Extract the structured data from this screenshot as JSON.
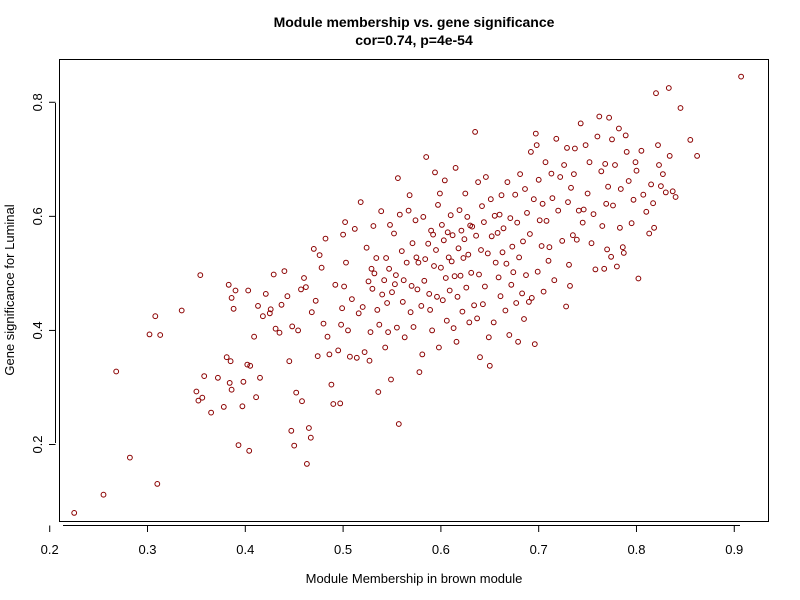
{
  "chart_data": {
    "type": "scatter",
    "title": "Module membership vs. gene significance",
    "subtitle": "cor=0.74, p=4e-54",
    "xlabel": "Module Membership in brown module",
    "ylabel": "Gene significance for Luminal",
    "xlim": [
      0.21,
      0.935
    ],
    "ylim": [
      0.065,
      0.875
    ],
    "xticks": [
      "0.2",
      "0.3",
      "0.4",
      "0.5",
      "0.6",
      "0.7",
      "0.8",
      "0.9"
    ],
    "yticks": [
      "0.2",
      "0.4",
      "0.6",
      "0.8"
    ],
    "grid": false,
    "point_color": "#8b0000",
    "points": [
      [
        0.225,
        0.08
      ],
      [
        0.255,
        0.112
      ],
      [
        0.268,
        0.328
      ],
      [
        0.282,
        0.177
      ],
      [
        0.302,
        0.393
      ],
      [
        0.308,
        0.425
      ],
      [
        0.31,
        0.131
      ],
      [
        0.313,
        0.392
      ],
      [
        0.335,
        0.435
      ],
      [
        0.35,
        0.293
      ],
      [
        0.352,
        0.277
      ],
      [
        0.354,
        0.497
      ],
      [
        0.356,
        0.282
      ],
      [
        0.358,
        0.32
      ],
      [
        0.365,
        0.256
      ],
      [
        0.372,
        0.317
      ],
      [
        0.378,
        0.266
      ],
      [
        0.381,
        0.353
      ],
      [
        0.383,
        0.48
      ],
      [
        0.384,
        0.308
      ],
      [
        0.385,
        0.346
      ],
      [
        0.386,
        0.296
      ],
      [
        0.386,
        0.457
      ],
      [
        0.388,
        0.438
      ],
      [
        0.39,
        0.47
      ],
      [
        0.393,
        0.199
      ],
      [
        0.397,
        0.267
      ],
      [
        0.398,
        0.31
      ],
      [
        0.402,
        0.34
      ],
      [
        0.403,
        0.47
      ],
      [
        0.404,
        0.189
      ],
      [
        0.405,
        0.338
      ],
      [
        0.409,
        0.389
      ],
      [
        0.411,
        0.283
      ],
      [
        0.413,
        0.443
      ],
      [
        0.415,
        0.317
      ],
      [
        0.418,
        0.425
      ],
      [
        0.421,
        0.464
      ],
      [
        0.425,
        0.43
      ],
      [
        0.426,
        0.437
      ],
      [
        0.429,
        0.498
      ],
      [
        0.431,
        0.403
      ],
      [
        0.435,
        0.396
      ],
      [
        0.437,
        0.445
      ],
      [
        0.44,
        0.504
      ],
      [
        0.443,
        0.46
      ],
      [
        0.445,
        0.346
      ],
      [
        0.447,
        0.224
      ],
      [
        0.448,
        0.407
      ],
      [
        0.45,
        0.198
      ],
      [
        0.452,
        0.291
      ],
      [
        0.454,
        0.4
      ],
      [
        0.457,
        0.472
      ],
      [
        0.458,
        0.276
      ],
      [
        0.46,
        0.492
      ],
      [
        0.462,
        0.476
      ],
      [
        0.463,
        0.166
      ],
      [
        0.465,
        0.229
      ],
      [
        0.467,
        0.212
      ],
      [
        0.468,
        0.432
      ],
      [
        0.47,
        0.543
      ],
      [
        0.472,
        0.452
      ],
      [
        0.474,
        0.355
      ],
      [
        0.476,
        0.532
      ],
      [
        0.478,
        0.51
      ],
      [
        0.48,
        0.412
      ],
      [
        0.482,
        0.561
      ],
      [
        0.484,
        0.389
      ],
      [
        0.486,
        0.358
      ],
      [
        0.488,
        0.305
      ],
      [
        0.49,
        0.271
      ],
      [
        0.492,
        0.48
      ],
      [
        0.495,
        0.365
      ],
      [
        0.497,
        0.272
      ],
      [
        0.498,
        0.41
      ],
      [
        0.499,
        0.439
      ],
      [
        0.5,
        0.568
      ],
      [
        0.501,
        0.477
      ],
      [
        0.502,
        0.59
      ],
      [
        0.503,
        0.519
      ],
      [
        0.505,
        0.4
      ],
      [
        0.507,
        0.354
      ],
      [
        0.509,
        0.455
      ],
      [
        0.512,
        0.578
      ],
      [
        0.514,
        0.352
      ],
      [
        0.516,
        0.43
      ],
      [
        0.518,
        0.625
      ],
      [
        0.52,
        0.441
      ],
      [
        0.522,
        0.362
      ],
      [
        0.524,
        0.545
      ],
      [
        0.526,
        0.486
      ],
      [
        0.527,
        0.347
      ],
      [
        0.528,
        0.397
      ],
      [
        0.529,
        0.508
      ],
      [
        0.53,
        0.473
      ],
      [
        0.531,
        0.583
      ],
      [
        0.532,
        0.5
      ],
      [
        0.534,
        0.527
      ],
      [
        0.535,
        0.436
      ],
      [
        0.536,
        0.292
      ],
      [
        0.537,
        0.41
      ],
      [
        0.539,
        0.609
      ],
      [
        0.54,
        0.463
      ],
      [
        0.542,
        0.488
      ],
      [
        0.543,
        0.37
      ],
      [
        0.544,
        0.527
      ],
      [
        0.545,
        0.448
      ],
      [
        0.546,
        0.397
      ],
      [
        0.547,
        0.508
      ],
      [
        0.548,
        0.585
      ],
      [
        0.549,
        0.314
      ],
      [
        0.55,
        0.467
      ],
      [
        0.552,
        0.57
      ],
      [
        0.553,
        0.481
      ],
      [
        0.554,
        0.497
      ],
      [
        0.555,
        0.405
      ],
      [
        0.556,
        0.667
      ],
      [
        0.557,
        0.236
      ],
      [
        0.558,
        0.603
      ],
      [
        0.56,
        0.539
      ],
      [
        0.561,
        0.45
      ],
      [
        0.562,
        0.488
      ],
      [
        0.563,
        0.388
      ],
      [
        0.565,
        0.519
      ],
      [
        0.567,
        0.61
      ],
      [
        0.568,
        0.637
      ],
      [
        0.569,
        0.432
      ],
      [
        0.57,
        0.478
      ],
      [
        0.571,
        0.553
      ],
      [
        0.572,
        0.406
      ],
      [
        0.574,
        0.593
      ],
      [
        0.575,
        0.528
      ],
      [
        0.576,
        0.472
      ],
      [
        0.577,
        0.519
      ],
      [
        0.578,
        0.327
      ],
      [
        0.58,
        0.443
      ],
      [
        0.581,
        0.358
      ],
      [
        0.582,
        0.599
      ],
      [
        0.583,
        0.487
      ],
      [
        0.584,
        0.525
      ],
      [
        0.585,
        0.704
      ],
      [
        0.587,
        0.552
      ],
      [
        0.588,
        0.464
      ],
      [
        0.589,
        0.436
      ],
      [
        0.59,
        0.575
      ],
      [
        0.591,
        0.4
      ],
      [
        0.592,
        0.568
      ],
      [
        0.593,
        0.513
      ],
      [
        0.594,
        0.677
      ],
      [
        0.595,
        0.541
      ],
      [
        0.596,
        0.459
      ],
      [
        0.597,
        0.62
      ],
      [
        0.598,
        0.37
      ],
      [
        0.599,
        0.64
      ],
      [
        0.6,
        0.51
      ],
      [
        0.601,
        0.585
      ],
      [
        0.602,
        0.453
      ],
      [
        0.603,
        0.558
      ],
      [
        0.604,
        0.663
      ],
      [
        0.605,
        0.492
      ],
      [
        0.606,
        0.417
      ],
      [
        0.607,
        0.572
      ],
      [
        0.608,
        0.528
      ],
      [
        0.609,
        0.47
      ],
      [
        0.61,
        0.602
      ],
      [
        0.611,
        0.521
      ],
      [
        0.612,
        0.567
      ],
      [
        0.613,
        0.404
      ],
      [
        0.614,
        0.495
      ],
      [
        0.615,
        0.685
      ],
      [
        0.616,
        0.38
      ],
      [
        0.617,
        0.459
      ],
      [
        0.618,
        0.544
      ],
      [
        0.619,
        0.611
      ],
      [
        0.62,
        0.496
      ],
      [
        0.621,
        0.575
      ],
      [
        0.622,
        0.433
      ],
      [
        0.623,
        0.527
      ],
      [
        0.624,
        0.56
      ],
      [
        0.625,
        0.64
      ],
      [
        0.626,
        0.475
      ],
      [
        0.627,
        0.599
      ],
      [
        0.628,
        0.533
      ],
      [
        0.629,
        0.414
      ],
      [
        0.63,
        0.584
      ],
      [
        0.631,
        0.501
      ],
      [
        0.632,
        0.582
      ],
      [
        0.634,
        0.444
      ],
      [
        0.635,
        0.748
      ],
      [
        0.636,
        0.566
      ],
      [
        0.637,
        0.421
      ],
      [
        0.638,
        0.66
      ],
      [
        0.639,
        0.498
      ],
      [
        0.64,
        0.353
      ],
      [
        0.641,
        0.541
      ],
      [
        0.642,
        0.618
      ],
      [
        0.643,
        0.446
      ],
      [
        0.644,
        0.59
      ],
      [
        0.645,
        0.477
      ],
      [
        0.646,
        0.669
      ],
      [
        0.648,
        0.535
      ],
      [
        0.649,
        0.388
      ],
      [
        0.65,
        0.338
      ],
      [
        0.651,
        0.63
      ],
      [
        0.652,
        0.565
      ],
      [
        0.654,
        0.414
      ],
      [
        0.655,
        0.601
      ],
      [
        0.656,
        0.519
      ],
      [
        0.658,
        0.571
      ],
      [
        0.659,
        0.493
      ],
      [
        0.66,
        0.603
      ],
      [
        0.661,
        0.46
      ],
      [
        0.662,
        0.637
      ],
      [
        0.663,
        0.537
      ],
      [
        0.664,
        0.579
      ],
      [
        0.666,
        0.435
      ],
      [
        0.667,
        0.517
      ],
      [
        0.668,
        0.66
      ],
      [
        0.67,
        0.392
      ],
      [
        0.671,
        0.597
      ],
      [
        0.672,
        0.48
      ],
      [
        0.673,
        0.547
      ],
      [
        0.674,
        0.502
      ],
      [
        0.676,
        0.638
      ],
      [
        0.677,
        0.448
      ],
      [
        0.678,
        0.589
      ],
      [
        0.679,
        0.38
      ],
      [
        0.68,
        0.528
      ],
      [
        0.681,
        0.674
      ],
      [
        0.683,
        0.465
      ],
      [
        0.684,
        0.556
      ],
      [
        0.685,
        0.42
      ],
      [
        0.686,
        0.648
      ],
      [
        0.687,
        0.497
      ],
      [
        0.688,
        0.606
      ],
      [
        0.69,
        0.45
      ],
      [
        0.691,
        0.569
      ],
      [
        0.692,
        0.713
      ],
      [
        0.693,
        0.457
      ],
      [
        0.695,
        0.63
      ],
      [
        0.696,
        0.376
      ],
      [
        0.697,
        0.745
      ],
      [
        0.698,
        0.725
      ],
      [
        0.699,
        0.503
      ],
      [
        0.7,
        0.664
      ],
      [
        0.701,
        0.593
      ],
      [
        0.703,
        0.548
      ],
      [
        0.704,
        0.622
      ],
      [
        0.705,
        0.468
      ],
      [
        0.707,
        0.695
      ],
      [
        0.708,
        0.592
      ],
      [
        0.71,
        0.522
      ],
      [
        0.711,
        0.546
      ],
      [
        0.713,
        0.675
      ],
      [
        0.714,
        0.632
      ],
      [
        0.716,
        0.488
      ],
      [
        0.718,
        0.736
      ],
      [
        0.72,
        0.61
      ],
      [
        0.722,
        0.669
      ],
      [
        0.724,
        0.557
      ],
      [
        0.726,
        0.69
      ],
      [
        0.728,
        0.442
      ],
      [
        0.729,
        0.72
      ],
      [
        0.73,
        0.625
      ],
      [
        0.731,
        0.515
      ],
      [
        0.732,
        0.478
      ],
      [
        0.733,
        0.65
      ],
      [
        0.735,
        0.567
      ],
      [
        0.736,
        0.674
      ],
      [
        0.737,
        0.719
      ],
      [
        0.739,
        0.559
      ],
      [
        0.741,
        0.61
      ],
      [
        0.743,
        0.763
      ],
      [
        0.745,
        0.589
      ],
      [
        0.746,
        0.612
      ],
      [
        0.748,
        0.725
      ],
      [
        0.75,
        0.64
      ],
      [
        0.752,
        0.695
      ],
      [
        0.754,
        0.553
      ],
      [
        0.756,
        0.604
      ],
      [
        0.758,
        0.507
      ],
      [
        0.76,
        0.74
      ],
      [
        0.762,
        0.775
      ],
      [
        0.764,
        0.679
      ],
      [
        0.765,
        0.583
      ],
      [
        0.767,
        0.508
      ],
      [
        0.768,
        0.692
      ],
      [
        0.769,
        0.622
      ],
      [
        0.77,
        0.542
      ],
      [
        0.771,
        0.652
      ],
      [
        0.772,
        0.773
      ],
      [
        0.774,
        0.529
      ],
      [
        0.775,
        0.735
      ],
      [
        0.776,
        0.619
      ],
      [
        0.778,
        0.69
      ],
      [
        0.78,
        0.512
      ],
      [
        0.782,
        0.754
      ],
      [
        0.783,
        0.58
      ],
      [
        0.784,
        0.648
      ],
      [
        0.786,
        0.546
      ],
      [
        0.787,
        0.536
      ],
      [
        0.789,
        0.742
      ],
      [
        0.79,
        0.713
      ],
      [
        0.792,
        0.662
      ],
      [
        0.795,
        0.588
      ],
      [
        0.797,
        0.629
      ],
      [
        0.799,
        0.695
      ],
      [
        0.8,
        0.68
      ],
      [
        0.802,
        0.491
      ],
      [
        0.805,
        0.715
      ],
      [
        0.807,
        0.638
      ],
      [
        0.81,
        0.608
      ],
      [
        0.813,
        0.57
      ],
      [
        0.815,
        0.656
      ],
      [
        0.817,
        0.623
      ],
      [
        0.818,
        0.58
      ],
      [
        0.82,
        0.816
      ],
      [
        0.822,
        0.725
      ],
      [
        0.823,
        0.69
      ],
      [
        0.825,
        0.653
      ],
      [
        0.827,
        0.674
      ],
      [
        0.83,
        0.642
      ],
      [
        0.833,
        0.825
      ],
      [
        0.834,
        0.706
      ],
      [
        0.837,
        0.644
      ],
      [
        0.84,
        0.634
      ],
      [
        0.845,
        0.79
      ],
      [
        0.855,
        0.734
      ],
      [
        0.862,
        0.706
      ],
      [
        0.907,
        0.845
      ]
    ]
  }
}
